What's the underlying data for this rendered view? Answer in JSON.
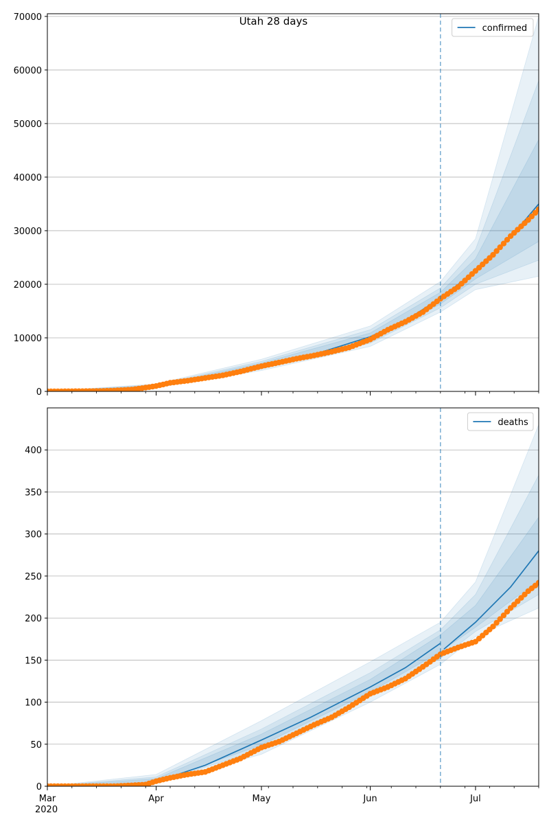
{
  "chart_data": [
    {
      "type": "line",
      "title": "Utah 28 days",
      "ylabel": "",
      "xlabel": "",
      "grid": "horizontal",
      "legend_position": "top-right",
      "ylim": [
        0,
        70500
      ],
      "yticks": [
        0,
        10000,
        20000,
        30000,
        40000,
        50000,
        60000,
        70000
      ],
      "xlim": [
        "2020-03-01",
        "2020-07-19"
      ],
      "xticks": [
        {
          "date": "2020-03-01",
          "label": "Mar"
        },
        {
          "date": "2020-04-01",
          "label": "Apr"
        },
        {
          "date": "2020-05-01",
          "label": "May"
        },
        {
          "date": "2020-06-01",
          "label": "Jun"
        },
        {
          "date": "2020-07-01",
          "label": "Jul"
        }
      ],
      "year_label": "2020",
      "forecast_start": "2020-06-21",
      "series": [
        {
          "name": "confirmed",
          "kind": "model-line",
          "color": "#1f77b4"
        },
        {
          "kind": "observed-points",
          "color": "#ff7f0e"
        }
      ],
      "observed_points": [
        [
          "2020-03-01",
          0
        ],
        [
          "2020-03-10",
          40
        ],
        [
          "2020-03-15",
          60
        ],
        [
          "2020-03-20",
          150
        ],
        [
          "2020-03-25",
          340
        ],
        [
          "2020-03-28",
          600
        ],
        [
          "2020-04-01",
          1000
        ],
        [
          "2020-04-05",
          1600
        ],
        [
          "2020-04-10",
          2000
        ],
        [
          "2020-04-15",
          2500
        ],
        [
          "2020-04-20",
          3000
        ],
        [
          "2020-04-25",
          3700
        ],
        [
          "2020-05-01",
          4700
        ],
        [
          "2020-05-06",
          5400
        ],
        [
          "2020-05-11",
          6100
        ],
        [
          "2020-05-16",
          6700
        ],
        [
          "2020-05-21",
          7400
        ],
        [
          "2020-05-26",
          8200
        ],
        [
          "2020-06-01",
          9700
        ],
        [
          "2020-06-06",
          11500
        ],
        [
          "2020-06-11",
          13000
        ],
        [
          "2020-06-16",
          14800
        ],
        [
          "2020-06-21",
          17300
        ],
        [
          "2020-06-26",
          19500
        ],
        [
          "2020-07-01",
          22500
        ],
        [
          "2020-07-06",
          25500
        ],
        [
          "2020-07-11",
          29000
        ],
        [
          "2020-07-16",
          32000
        ],
        [
          "2020-07-19",
          34000
        ]
      ],
      "model_line": [
        [
          "2020-03-01",
          0
        ],
        [
          "2020-03-15",
          80
        ],
        [
          "2020-03-25",
          400
        ],
        [
          "2020-04-01",
          1000
        ],
        [
          "2020-04-15",
          2600
        ],
        [
          "2020-05-01",
          4900
        ],
        [
          "2020-05-15",
          6700
        ],
        [
          "2020-06-01",
          10200
        ],
        [
          "2020-06-11",
          13200
        ],
        [
          "2020-06-21",
          17400
        ],
        [
          "2020-07-01",
          22500
        ],
        [
          "2020-07-11",
          28800
        ],
        [
          "2020-07-19",
          35000
        ]
      ],
      "bands": [
        {
          "lower": [
            [
              "2020-03-01",
              0
            ],
            [
              "2020-04-01",
              700
            ],
            [
              "2020-05-01",
              3900
            ],
            [
              "2020-06-01",
              8400
            ],
            [
              "2020-06-21",
              14800
            ],
            [
              "2020-07-01",
              19000
            ],
            [
              "2020-07-19",
              21500
            ]
          ],
          "upper": [
            [
              "2020-03-01",
              0
            ],
            [
              "2020-04-01",
              1400
            ],
            [
              "2020-05-01",
              6000
            ],
            [
              "2020-06-01",
              12200
            ],
            [
              "2020-06-21",
              20500
            ],
            [
              "2020-07-01",
              28500
            ],
            [
              "2020-07-19",
              70000
            ]
          ]
        },
        {
          "lower": [
            [
              "2020-03-01",
              0
            ],
            [
              "2020-04-01",
              800
            ],
            [
              "2020-05-01",
              4200
            ],
            [
              "2020-06-01",
              9000
            ],
            [
              "2020-06-21",
              15600
            ],
            [
              "2020-07-01",
              20000
            ],
            [
              "2020-07-19",
              24500
            ]
          ],
          "upper": [
            [
              "2020-03-01",
              0
            ],
            [
              "2020-04-01",
              1250
            ],
            [
              "2020-05-01",
              5600
            ],
            [
              "2020-06-01",
              11500
            ],
            [
              "2020-06-21",
              19300
            ],
            [
              "2020-07-01",
              26500
            ],
            [
              "2020-07-19",
              58000
            ]
          ]
        },
        {
          "lower": [
            [
              "2020-03-01",
              0
            ],
            [
              "2020-04-01",
              880
            ],
            [
              "2020-05-01",
              4500
            ],
            [
              "2020-06-01",
              9500
            ],
            [
              "2020-06-21",
              16300
            ],
            [
              "2020-07-01",
              21000
            ],
            [
              "2020-07-19",
              28000
            ]
          ],
          "upper": [
            [
              "2020-03-01",
              0
            ],
            [
              "2020-04-01",
              1120
            ],
            [
              "2020-05-01",
              5300
            ],
            [
              "2020-06-01",
              10900
            ],
            [
              "2020-06-21",
              18500
            ],
            [
              "2020-07-01",
              24800
            ],
            [
              "2020-07-19",
              47000
            ]
          ]
        }
      ]
    },
    {
      "type": "line",
      "title": "",
      "ylabel": "",
      "xlabel": "",
      "grid": "horizontal",
      "legend_position": "top-right",
      "ylim": [
        0,
        450
      ],
      "yticks": [
        0,
        50,
        100,
        150,
        200,
        250,
        300,
        350,
        400
      ],
      "xlim": [
        "2020-03-01",
        "2020-07-19"
      ],
      "xticks": [
        {
          "date": "2020-03-01",
          "label": "Mar"
        },
        {
          "date": "2020-04-01",
          "label": "Apr"
        },
        {
          "date": "2020-05-01",
          "label": "May"
        },
        {
          "date": "2020-06-01",
          "label": "Jun"
        },
        {
          "date": "2020-07-01",
          "label": "Jul"
        }
      ],
      "year_label": "2020",
      "forecast_start": "2020-06-21",
      "series": [
        {
          "name": "deaths",
          "kind": "model-line",
          "color": "#1f77b4"
        },
        {
          "kind": "observed-points",
          "color": "#ff7f0e"
        }
      ],
      "observed_points": [
        [
          "2020-03-01",
          0
        ],
        [
          "2020-03-20",
          0
        ],
        [
          "2020-03-25",
          1
        ],
        [
          "2020-03-29",
          2
        ],
        [
          "2020-04-01",
          6
        ],
        [
          "2020-04-05",
          10
        ],
        [
          "2020-04-10",
          14
        ],
        [
          "2020-04-15",
          17
        ],
        [
          "2020-04-20",
          25
        ],
        [
          "2020-04-25",
          33
        ],
        [
          "2020-05-01",
          46
        ],
        [
          "2020-05-06",
          53
        ],
        [
          "2020-05-11",
          63
        ],
        [
          "2020-05-16",
          73
        ],
        [
          "2020-05-21",
          82
        ],
        [
          "2020-05-26",
          94
        ],
        [
          "2020-06-01",
          110
        ],
        [
          "2020-06-06",
          118
        ],
        [
          "2020-06-11",
          128
        ],
        [
          "2020-06-16",
          142
        ],
        [
          "2020-06-21",
          157
        ],
        [
          "2020-06-26",
          165
        ],
        [
          "2020-07-01",
          172
        ],
        [
          "2020-07-06",
          190
        ],
        [
          "2020-07-11",
          212
        ],
        [
          "2020-07-16",
          232
        ],
        [
          "2020-07-19",
          242
        ]
      ],
      "model_line_fit": [
        [
          "2020-03-01",
          0
        ],
        [
          "2020-03-20",
          0.5
        ],
        [
          "2020-03-28",
          3
        ],
        [
          "2020-04-05",
          11
        ],
        [
          "2020-04-15",
          25
        ],
        [
          "2020-05-01",
          55
        ],
        [
          "2020-05-15",
          82
        ],
        [
          "2020-06-01",
          118
        ],
        [
          "2020-06-11",
          141
        ],
        [
          "2020-06-21",
          170
        ]
      ],
      "model_line_forecast": [
        [
          "2020-06-22",
          163
        ],
        [
          "2020-07-01",
          195
        ],
        [
          "2020-07-11",
          237
        ],
        [
          "2020-07-19",
          280
        ]
      ],
      "bands": [
        {
          "lower": [
            [
              "2020-03-01",
              0
            ],
            [
              "2020-04-01",
              3
            ],
            [
              "2020-05-01",
              38
            ],
            [
              "2020-06-01",
              100
            ],
            [
              "2020-06-21",
              145
            ],
            [
              "2020-07-01",
              178
            ],
            [
              "2020-07-19",
              212
            ]
          ],
          "upper": [
            [
              "2020-03-01",
              0
            ],
            [
              "2020-04-01",
              14
            ],
            [
              "2020-05-01",
              78
            ],
            [
              "2020-06-01",
              148
            ],
            [
              "2020-06-21",
              195
            ],
            [
              "2020-07-01",
              243
            ],
            [
              "2020-07-19",
              430
            ]
          ]
        },
        {
          "lower": [
            [
              "2020-03-01",
              0
            ],
            [
              "2020-04-01",
              4
            ],
            [
              "2020-05-01",
              44
            ],
            [
              "2020-06-01",
              107
            ],
            [
              "2020-06-21",
              152
            ],
            [
              "2020-07-01",
              184
            ],
            [
              "2020-07-19",
              228
            ]
          ],
          "upper": [
            [
              "2020-03-01",
              0
            ],
            [
              "2020-04-01",
              11
            ],
            [
              "2020-05-01",
              68
            ],
            [
              "2020-06-01",
              135
            ],
            [
              "2020-06-21",
              186
            ],
            [
              "2020-07-01",
              228
            ],
            [
              "2020-07-19",
              370
            ]
          ]
        },
        {
          "lower": [
            [
              "2020-03-01",
              0
            ],
            [
              "2020-04-01",
              5
            ],
            [
              "2020-05-01",
              49
            ],
            [
              "2020-06-01",
              112
            ],
            [
              "2020-06-21",
              160
            ],
            [
              "2020-07-01",
              189
            ],
            [
              "2020-07-19",
              245
            ]
          ],
          "upper": [
            [
              "2020-03-01",
              0
            ],
            [
              "2020-04-01",
              9
            ],
            [
              "2020-05-01",
              62
            ],
            [
              "2020-06-01",
              127
            ],
            [
              "2020-06-21",
              180
            ],
            [
              "2020-07-01",
              215
            ],
            [
              "2020-07-19",
              320
            ]
          ]
        }
      ]
    }
  ]
}
